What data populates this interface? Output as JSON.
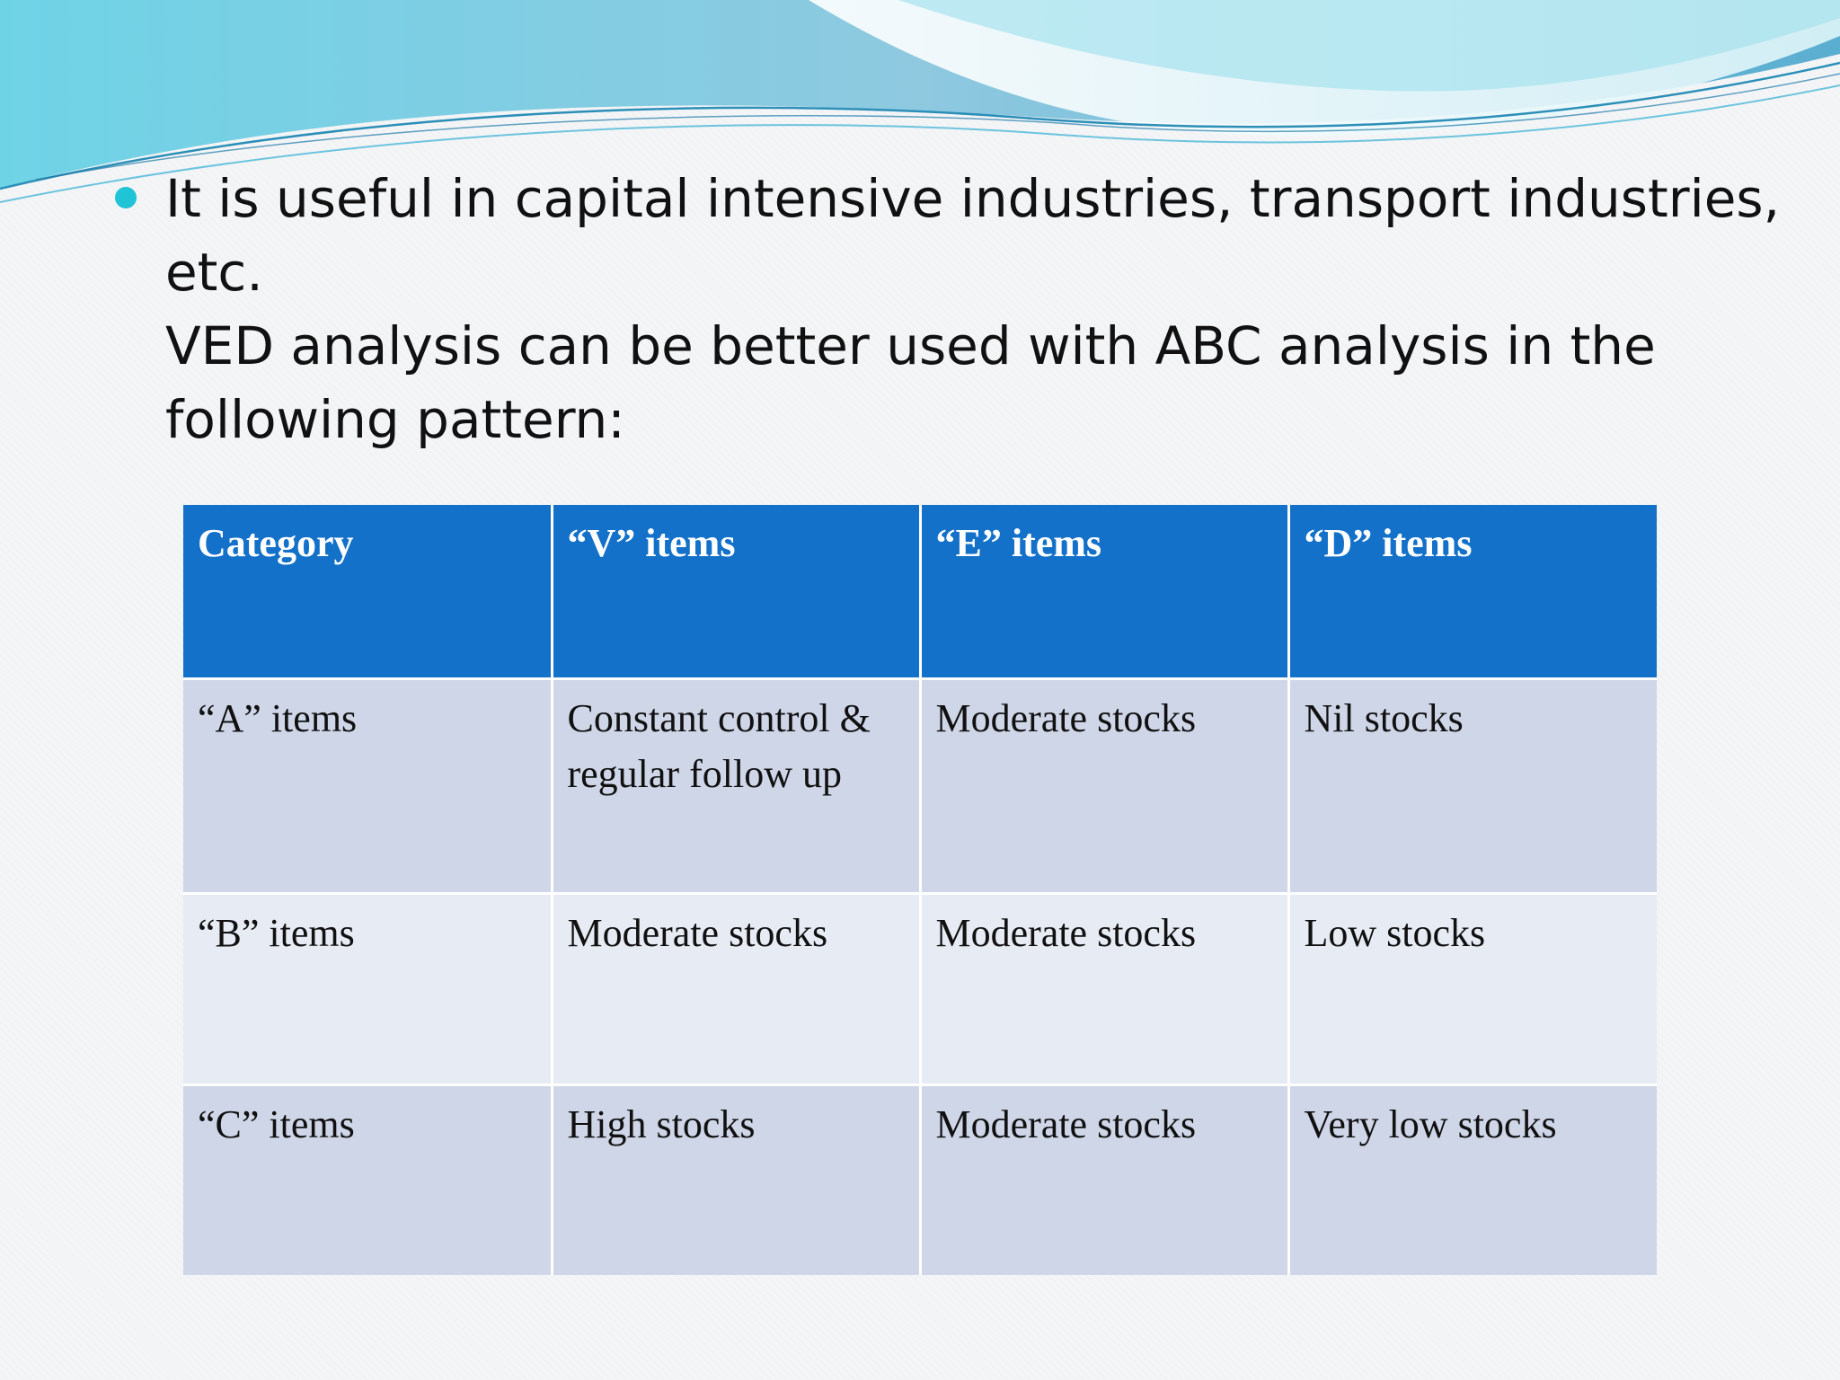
{
  "theme": {
    "header_color": "#1371c9",
    "row_odd_color": "#cfd6e8",
    "row_even_color": "#e7ebf4",
    "bullet_color": "#1fc4d6"
  },
  "bullet": {
    "lines": [
      "It is useful in capital intensive industries, transport industries,",
      "etc.",
      "VED analysis can be better used with ABC analysis in the",
      "following pattern:"
    ]
  },
  "table": {
    "headers": [
      "Category",
      "“V” items",
      "“E” items",
      "“D” items"
    ],
    "rows": [
      [
        "“A” items",
        "Constant control & regular follow up",
        "Moderate stocks",
        "Nil stocks"
      ],
      [
        "“B” items",
        "Moderate stocks",
        "Moderate stocks",
        "Low stocks"
      ],
      [
        "“C” items",
        "High stocks",
        "Moderate stocks",
        "Very low stocks"
      ]
    ]
  }
}
